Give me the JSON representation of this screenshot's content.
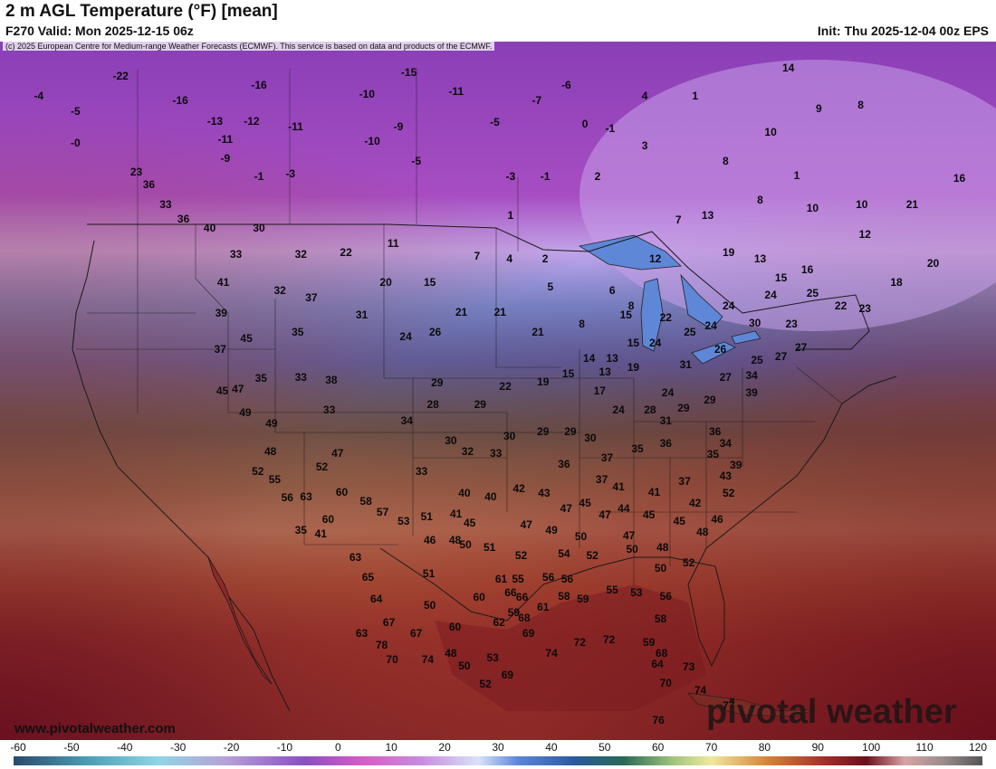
{
  "header": {
    "title": "2 m AGL Temperature (°F) [mean]",
    "valid": "F270 Valid: Mon 2025-12-15 06z",
    "init": "Init: Thu 2025-12-04 00z EPS"
  },
  "copyright": "(c) 2025 European Centre for Medium-range Weather Forecasts (ECMWF). This service is based on data and products of the ECMWF.",
  "branding": {
    "website": "www.pivotalweather.com",
    "logo_text": "pivotal weather"
  },
  "colorbar": {
    "labels": [
      "-60",
      "-50",
      "-40",
      "-30",
      "-20",
      "-10",
      "0",
      "10",
      "20",
      "30",
      "40",
      "50",
      "60",
      "70",
      "80",
      "90",
      "100",
      "110",
      "120"
    ]
  },
  "temperatures": [
    {
      "v": "-22",
      "lon": -133.5,
      "lat": 59.8
    },
    {
      "v": "-4",
      "lon": -141.3,
      "lat": 58.5
    },
    {
      "v": "-5",
      "lon": -137.8,
      "lat": 57.5
    },
    {
      "v": "-0",
      "lon": -137.8,
      "lat": 55.5
    },
    {
      "v": "-16",
      "lon": -127.8,
      "lat": 58.2
    },
    {
      "v": "-16",
      "lon": -120.3,
      "lat": 59.2
    },
    {
      "v": "-13",
      "lon": -124.5,
      "lat": 56.9
    },
    {
      "v": "-12",
      "lon": -121.0,
      "lat": 56.9
    },
    {
      "v": "-11",
      "lon": -123.5,
      "lat": 55.7
    },
    {
      "v": "-11",
      "lon": -116.8,
      "lat": 56.5
    },
    {
      "v": "-9",
      "lon": -123.5,
      "lat": 54.5
    },
    {
      "v": "-1",
      "lon": -120.3,
      "lat": 53.3
    },
    {
      "v": "-3",
      "lon": -117.3,
      "lat": 53.5
    },
    {
      "v": "-10",
      "lon": -110.0,
      "lat": 58.6
    },
    {
      "v": "-15",
      "lon": -106.0,
      "lat": 60.0
    },
    {
      "v": "-11",
      "lon": -101.5,
      "lat": 58.8
    },
    {
      "v": "-9",
      "lon": -107.0,
      "lat": 56.5
    },
    {
      "v": "-10",
      "lon": -109.5,
      "lat": 55.6
    },
    {
      "v": "-5",
      "lon": -105.3,
      "lat": 54.3
    },
    {
      "v": "-5",
      "lon": -97.8,
      "lat": 56.8
    },
    {
      "v": "-7",
      "lon": -93.8,
      "lat": 58.2
    },
    {
      "v": "-6",
      "lon": -91.0,
      "lat": 59.2
    },
    {
      "v": "0",
      "lon": -89.2,
      "lat": 56.7
    },
    {
      "v": "-1",
      "lon": -86.8,
      "lat": 56.4
    },
    {
      "v": "-3",
      "lon": -96.3,
      "lat": 53.3
    },
    {
      "v": "-1",
      "lon": -93.0,
      "lat": 53.3
    },
    {
      "v": "2",
      "lon": -88.0,
      "lat": 53.3
    },
    {
      "v": "4",
      "lon": -83.5,
      "lat": 58.5
    },
    {
      "v": "3",
      "lon": -83.5,
      "lat": 55.3
    },
    {
      "v": "23",
      "lon": -132.0,
      "lat": 53.6
    },
    {
      "v": "40",
      "lon": -125.0,
      "lat": 50.0
    },
    {
      "v": "30",
      "lon": -120.3,
      "lat": 50.0
    },
    {
      "v": "33",
      "lon": -122.5,
      "lat": 48.3
    },
    {
      "v": "41",
      "lon": -123.7,
      "lat": 46.5
    },
    {
      "v": "39",
      "lon": -123.9,
      "lat": 44.5
    },
    {
      "v": "37",
      "lon": -124.0,
      "lat": 42.2
    },
    {
      "v": "45",
      "lon": -123.8,
      "lat": 39.5
    },
    {
      "v": "32",
      "lon": -118.3,
      "lat": 46.0
    },
    {
      "v": "32",
      "lon": -116.3,
      "lat": 48.3
    },
    {
      "v": "37",
      "lon": -115.3,
      "lat": 45.5
    },
    {
      "v": "35",
      "lon": -116.6,
      "lat": 43.3
    },
    {
      "v": "22",
      "lon": -112.0,
      "lat": 48.4
    },
    {
      "v": "11",
      "lon": -107.5,
      "lat": 49.0
    },
    {
      "v": "20",
      "lon": -108.2,
      "lat": 46.5
    },
    {
      "v": "15",
      "lon": -104.0,
      "lat": 46.5
    },
    {
      "v": "31",
      "lon": -110.5,
      "lat": 44.4
    },
    {
      "v": "24",
      "lon": -106.3,
      "lat": 43.0
    },
    {
      "v": "26",
      "lon": -103.5,
      "lat": 43.3
    },
    {
      "v": "21",
      "lon": -101.0,
      "lat": 44.6
    },
    {
      "v": "21",
      "lon": -97.3,
      "lat": 44.6
    },
    {
      "v": "21",
      "lon": -93.7,
      "lat": 43.3
    },
    {
      "v": "1",
      "lon": -96.3,
      "lat": 50.8
    },
    {
      "v": "7",
      "lon": -99.5,
      "lat": 48.2
    },
    {
      "v": "4",
      "lon": -96.4,
      "lat": 48.0
    },
    {
      "v": "2",
      "lon": -93.0,
      "lat": 48.0
    },
    {
      "v": "5",
      "lon": -92.5,
      "lat": 46.2
    },
    {
      "v": "8",
      "lon": -89.5,
      "lat": 43.8
    },
    {
      "v": "14",
      "lon": -88.8,
      "lat": 41.6
    },
    {
      "v": "6",
      "lon": -86.6,
      "lat": 46.0
    },
    {
      "v": "8",
      "lon": -84.8,
      "lat": 45.0
    },
    {
      "v": "12",
      "lon": -82.5,
      "lat": 48.0
    },
    {
      "v": "7",
      "lon": -80.3,
      "lat": 50.5
    },
    {
      "v": "13",
      "lon": -77.5,
      "lat": 50.8
    },
    {
      "v": "19",
      "lon": -75.5,
      "lat": 48.4
    },
    {
      "v": "13",
      "lon": -72.5,
      "lat": 48.0
    },
    {
      "v": "8",
      "lon": -72.5,
      "lat": 51.8
    },
    {
      "v": "10",
      "lon": -67.5,
      "lat": 51.3
    },
    {
      "v": "10",
      "lon": -62.8,
      "lat": 51.5
    },
    {
      "v": "21",
      "lon": -58.0,
      "lat": 51.5
    },
    {
      "v": "16",
      "lon": -53.5,
      "lat": 53.2
    },
    {
      "v": "12",
      "lon": -62.5,
      "lat": 49.6
    },
    {
      "v": "15",
      "lon": -70.5,
      "lat": 46.8
    },
    {
      "v": "16",
      "lon": -68.0,
      "lat": 47.3
    },
    {
      "v": "20",
      "lon": -56.0,
      "lat": 47.7
    },
    {
      "v": "18",
      "lon": -59.5,
      "lat": 46.5
    },
    {
      "v": "23",
      "lon": -62.5,
      "lat": 44.8
    },
    {
      "v": "22",
      "lon": -64.8,
      "lat": 45.0
    },
    {
      "v": "25",
      "lon": -67.5,
      "lat": 45.8
    },
    {
      "v": "24",
      "lon": -71.5,
      "lat": 45.7
    },
    {
      "v": "24",
      "lon": -75.5,
      "lat": 45.0
    },
    {
      "v": "30",
      "lon": -73.0,
      "lat": 43.9
    },
    {
      "v": "23",
      "lon": -69.5,
      "lat": 43.8
    },
    {
      "v": "27",
      "lon": -68.6,
      "lat": 42.3
    },
    {
      "v": "27",
      "lon": -70.5,
      "lat": 41.7
    },
    {
      "v": "25",
      "lon": -72.8,
      "lat": 41.5
    },
    {
      "v": "34",
      "lon": -73.3,
      "lat": 40.5
    },
    {
      "v": "39",
      "lon": -73.3,
      "lat": 39.4
    },
    {
      "v": "22",
      "lon": -81.5,
      "lat": 44.2
    },
    {
      "v": "25",
      "lon": -79.2,
      "lat": 43.3
    },
    {
      "v": "24",
      "lon": -77.2,
      "lat": 43.7
    },
    {
      "v": "26",
      "lon": -76.3,
      "lat": 42.2
    },
    {
      "v": "27",
      "lon": -75.8,
      "lat": 40.4
    },
    {
      "v": "31",
      "lon": -79.6,
      "lat": 41.2
    },
    {
      "v": "15",
      "lon": -85.3,
      "lat": 44.4
    },
    {
      "v": "15",
      "lon": -84.6,
      "lat": 42.6
    },
    {
      "v": "24",
      "lon": -82.5,
      "lat": 42.6
    },
    {
      "v": "19",
      "lon": -84.6,
      "lat": 41.0
    },
    {
      "v": "13",
      "lon": -86.6,
      "lat": 41.6
    },
    {
      "v": "13",
      "lon": -87.3,
      "lat": 40.7
    },
    {
      "v": "15",
      "lon": -90.8,
      "lat": 40.6
    },
    {
      "v": "19",
      "lon": -93.2,
      "lat": 40.1
    },
    {
      "v": "22",
      "lon": -96.8,
      "lat": 39.8
    },
    {
      "v": "17",
      "lon": -87.8,
      "lat": 39.5
    },
    {
      "v": "24",
      "lon": -86.0,
      "lat": 38.3
    },
    {
      "v": "28",
      "lon": -83.0,
      "lat": 38.3
    },
    {
      "v": "24",
      "lon": -81.3,
      "lat": 39.4
    },
    {
      "v": "29",
      "lon": -79.8,
      "lat": 38.4
    },
    {
      "v": "31",
      "lon": -81.5,
      "lat": 37.6
    },
    {
      "v": "29",
      "lon": -77.3,
      "lat": 38.9
    },
    {
      "v": "36",
      "lon": -76.8,
      "lat": 36.9
    },
    {
      "v": "34",
      "lon": -75.8,
      "lat": 36.1
    },
    {
      "v": "39",
      "lon": -74.8,
      "lat": 34.7
    },
    {
      "v": "35",
      "lon": -77.0,
      "lat": 35.4
    },
    {
      "v": "36",
      "lon": -81.5,
      "lat": 36.1
    },
    {
      "v": "35",
      "lon": -84.2,
      "lat": 35.8
    },
    {
      "v": "37",
      "lon": -87.1,
      "lat": 35.2
    },
    {
      "v": "30",
      "lon": -88.7,
      "lat": 36.5
    },
    {
      "v": "29",
      "lon": -90.6,
      "lat": 36.9
    },
    {
      "v": "29",
      "lon": -93.2,
      "lat": 36.9
    },
    {
      "v": "30",
      "lon": -96.4,
      "lat": 36.6
    },
    {
      "v": "32",
      "lon": -100.4,
      "lat": 35.6
    },
    {
      "v": "33",
      "lon": -97.7,
      "lat": 35.5
    },
    {
      "v": "28",
      "lon": -103.7,
      "lat": 38.6
    },
    {
      "v": "29",
      "lon": -103.3,
      "lat": 40.0
    },
    {
      "v": "29",
      "lon": -99.2,
      "lat": 38.6
    },
    {
      "v": "34",
      "lon": -106.2,
      "lat": 37.6
    },
    {
      "v": "30",
      "lon": -102.0,
      "lat": 36.3
    },
    {
      "v": "33",
      "lon": -104.8,
      "lat": 34.3
    },
    {
      "v": "36",
      "lon": -91.2,
      "lat": 34.8
    },
    {
      "v": "37",
      "lon": -87.6,
      "lat": 33.8
    },
    {
      "v": "41",
      "lon": -86.0,
      "lat": 33.3
    },
    {
      "v": "41",
      "lon": -82.6,
      "lat": 33.0
    },
    {
      "v": "37",
      "lon": -79.7,
      "lat": 33.7
    },
    {
      "v": "42",
      "lon": -78.7,
      "lat": 32.3
    },
    {
      "v": "52",
      "lon": -75.5,
      "lat": 32.9
    },
    {
      "v": "46",
      "lon": -76.6,
      "lat": 31.2
    },
    {
      "v": "43",
      "lon": -75.8,
      "lat": 34.0
    },
    {
      "v": "40",
      "lon": -98.2,
      "lat": 32.7
    },
    {
      "v": "42",
      "lon": -95.5,
      "lat": 33.2
    },
    {
      "v": "43",
      "lon": -93.1,
      "lat": 32.9
    },
    {
      "v": "47",
      "lon": -91.0,
      "lat": 31.9
    },
    {
      "v": "45",
      "lon": -89.2,
      "lat": 32.3
    },
    {
      "v": "47",
      "lon": -87.3,
      "lat": 31.5
    },
    {
      "v": "44",
      "lon": -85.5,
      "lat": 31.9
    },
    {
      "v": "45",
      "lon": -83.1,
      "lat": 31.5
    },
    {
      "v": "45",
      "lon": -80.2,
      "lat": 31.1
    },
    {
      "v": "48",
      "lon": -78.0,
      "lat": 30.4
    },
    {
      "v": "47",
      "lon": -94.8,
      "lat": 30.9
    },
    {
      "v": "49",
      "lon": -92.4,
      "lat": 30.5
    },
    {
      "v": "50",
      "lon": -89.6,
      "lat": 30.1
    },
    {
      "v": "47",
      "lon": -85.0,
      "lat": 30.2
    },
    {
      "v": "50",
      "lon": -84.7,
      "lat": 29.3
    },
    {
      "v": "48",
      "lon": -81.8,
      "lat": 29.4
    },
    {
      "v": "52",
      "lon": -79.3,
      "lat": 28.4
    },
    {
      "v": "50",
      "lon": -82.0,
      "lat": 28.1
    },
    {
      "v": "54",
      "lon": -91.2,
      "lat": 29.0
    },
    {
      "v": "52",
      "lon": -88.5,
      "lat": 28.9
    },
    {
      "v": "52",
      "lon": -95.3,
      "lat": 28.9
    },
    {
      "v": "51",
      "lon": -98.3,
      "lat": 29.4
    },
    {
      "v": "50",
      "lon": -100.6,
      "lat": 29.6
    },
    {
      "v": "45",
      "lon": -100.2,
      "lat": 31.0
    },
    {
      "v": "41",
      "lon": -101.5,
      "lat": 31.6
    },
    {
      "v": "40",
      "lon": -100.7,
      "lat": 32.9
    },
    {
      "v": "55",
      "lon": -95.6,
      "lat": 27.4
    },
    {
      "v": "56",
      "lon": -92.7,
      "lat": 27.5
    },
    {
      "v": "56",
      "lon": -90.9,
      "lat": 27.4
    },
    {
      "v": "58",
      "lon": -91.2,
      "lat": 26.3
    },
    {
      "v": "59",
      "lon": -89.4,
      "lat": 26.1
    },
    {
      "v": "55",
      "lon": -86.6,
      "lat": 26.7
    },
    {
      "v": "53",
      "lon": -84.3,
      "lat": 26.5
    },
    {
      "v": "56",
      "lon": -81.5,
      "lat": 26.3
    },
    {
      "v": "61",
      "lon": -93.2,
      "lat": 25.6
    },
    {
      "v": "59",
      "lon": -96.0,
      "lat": 25.2
    },
    {
      "v": "58",
      "lon": -82.0,
      "lat": 24.8
    },
    {
      "v": "59",
      "lon": -83.1,
      "lat": 23.3
    },
    {
      "v": "68",
      "lon": -81.9,
      "lat": 22.6
    },
    {
      "v": "64",
      "lon": -82.3,
      "lat": 21.9
    },
    {
      "v": "70",
      "lon": -81.5,
      "lat": 20.7
    },
    {
      "v": "74",
      "lon": -92.4,
      "lat": 22.6
    },
    {
      "v": "72",
      "lon": -89.7,
      "lat": 23.3
    },
    {
      "v": "72",
      "lon": -86.9,
      "lat": 23.5
    },
    {
      "v": "73",
      "lon": -79.3,
      "lat": 21.7
    },
    {
      "v": "74",
      "lon": -78.2,
      "lat": 20.2
    },
    {
      "v": "77",
      "lon": -75.5,
      "lat": 19.2
    },
    {
      "v": "76",
      "lon": -82.2,
      "lat": 18.3
    },
    {
      "v": "41",
      "lon": -114.4,
      "lat": 30.3
    },
    {
      "v": "35",
      "lon": -116.3,
      "lat": 30.5
    },
    {
      "v": "33",
      "lon": -113.6,
      "lat": 38.3
    },
    {
      "v": "38",
      "lon": -113.4,
      "lat": 40.2
    },
    {
      "v": "47",
      "lon": -112.8,
      "lat": 35.5
    },
    {
      "v": "52",
      "lon": -114.3,
      "lat": 34.6
    },
    {
      "v": "60",
      "lon": -112.4,
      "lat": 33.0
    },
    {
      "v": "58",
      "lon": -110.1,
      "lat": 32.4
    },
    {
      "v": "57",
      "lon": -108.5,
      "lat": 31.7
    },
    {
      "v": "53",
      "lon": -106.5,
      "lat": 31.1
    },
    {
      "v": "51",
      "lon": -104.3,
      "lat": 31.4
    },
    {
      "v": "46",
      "lon": -104.0,
      "lat": 29.9
    },
    {
      "v": "48",
      "lon": -101.6,
      "lat": 29.9
    },
    {
      "v": "51",
      "lon": -104.1,
      "lat": 27.7
    },
    {
      "v": "50",
      "lon": -104.0,
      "lat": 25.7
    },
    {
      "v": "60",
      "lon": -99.3,
      "lat": 26.2
    },
    {
      "v": "61",
      "lon": -97.2,
      "lat": 27.4
    },
    {
      "v": "66",
      "lon": -96.3,
      "lat": 26.5
    },
    {
      "v": "66",
      "lon": -95.2,
      "lat": 26.2
    },
    {
      "v": "68",
      "lon": -95.0,
      "lat": 24.9
    },
    {
      "v": "69",
      "lon": -94.6,
      "lat": 23.9
    },
    {
      "v": "62",
      "lon": -97.4,
      "lat": 24.6
    },
    {
      "v": "60",
      "lon": -101.6,
      "lat": 24.3
    },
    {
      "v": "48",
      "lon": -102.0,
      "lat": 22.6
    },
    {
      "v": "50",
      "lon": -100.7,
      "lat": 21.8
    },
    {
      "v": "53",
      "lon": -98.0,
      "lat": 22.3
    },
    {
      "v": "52",
      "lon": -98.7,
      "lat": 20.6
    },
    {
      "v": "69",
      "lon": -96.6,
      "lat": 21.2
    },
    {
      "v": "67",
      "lon": -105.3,
      "lat": 23.9
    },
    {
      "v": "74",
      "lon": -104.2,
      "lat": 22.2
    },
    {
      "v": "67",
      "lon": -107.9,
      "lat": 24.6
    },
    {
      "v": "64",
      "lon": -109.1,
      "lat": 26.1
    },
    {
      "v": "65",
      "lon": -109.9,
      "lat": 27.5
    },
    {
      "v": "63",
      "lon": -111.1,
      "lat": 28.8
    },
    {
      "v": "63",
      "lon": -110.5,
      "lat": 23.9
    },
    {
      "v": "78",
      "lon": -108.6,
      "lat": 23.1
    },
    {
      "v": "70",
      "lon": -107.6,
      "lat": 22.2
    },
    {
      "v": "60",
      "lon": -113.7,
      "lat": 31.2
    },
    {
      "v": "63",
      "lon": -115.8,
      "lat": 32.7
    },
    {
      "v": "56",
      "lon": -117.6,
      "lat": 32.6
    },
    {
      "v": "55",
      "lon": -118.8,
      "lat": 33.8
    },
    {
      "v": "52",
      "lon": -120.4,
      "lat": 34.3
    },
    {
      "v": "48",
      "lon": -119.2,
      "lat": 35.6
    },
    {
      "v": "49",
      "lon": -119.1,
      "lat": 37.4
    },
    {
      "v": "49",
      "lon": -121.6,
      "lat": 38.1
    },
    {
      "v": "47",
      "lon": -122.3,
      "lat": 39.6
    },
    {
      "v": "35",
      "lon": -120.1,
      "lat": 40.3
    },
    {
      "v": "33",
      "lon": -116.3,
      "lat": 40.4
    },
    {
      "v": "45",
      "lon": -121.5,
      "lat": 42.9
    },
    {
      "v": "36",
      "lon": -127.5,
      "lat": 50.6
    },
    {
      "v": "33",
      "lon": -129.2,
      "lat": 51.5
    },
    {
      "v": "36",
      "lon": -130.8,
      "lat": 52.8
    },
    {
      "v": "14",
      "lon": -69.8,
      "lat": 60.3
    },
    {
      "v": "9",
      "lon": -66.9,
      "lat": 57.7
    },
    {
      "v": "8",
      "lon": -62.9,
      "lat": 57.9
    },
    {
      "v": "10",
      "lon": -71.5,
      "lat": 56.2
    },
    {
      "v": "1",
      "lon": -69.0,
      "lat": 53.4
    },
    {
      "v": "8",
      "lon": -75.8,
      "lat": 54.3
    },
    {
      "v": "1",
      "lon": -78.7,
      "lat": 58.5
    }
  ]
}
